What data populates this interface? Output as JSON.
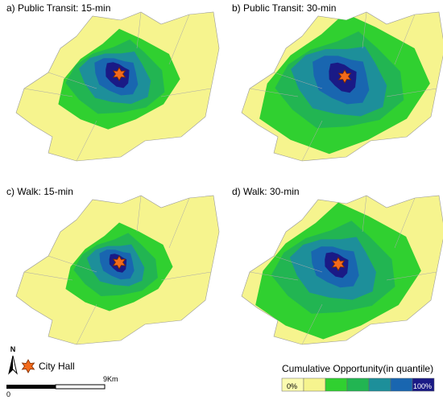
{
  "panels": [
    {
      "title": "a) Public Transit: 15-min"
    },
    {
      "title": "b) Public Transit: 30-min"
    },
    {
      "title": "c) Walk: 15-min"
    },
    {
      "title": "d) Walk: 30-min"
    }
  ],
  "north_arrow": "N",
  "marker_legend": "City Hall",
  "scale_bar": {
    "start": "0",
    "end": "9Km"
  },
  "color_legend": {
    "title": "Cumulative Opportunity(in quantile)",
    "min_label": "0%",
    "max_label": "100%"
  }
}
